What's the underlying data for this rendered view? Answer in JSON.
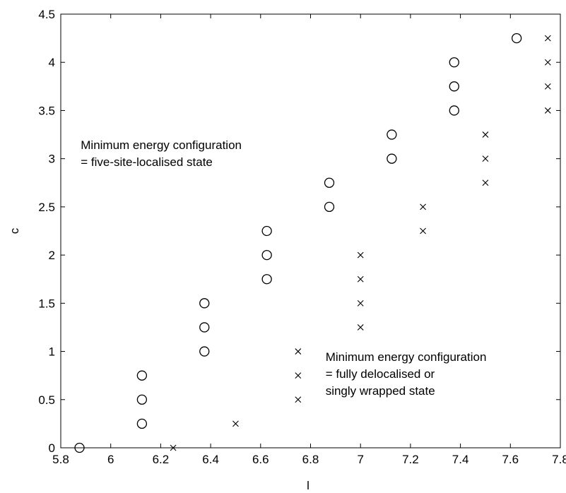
{
  "chart_data": {
    "type": "scatter",
    "title": "",
    "xlabel": "l",
    "ylabel": "c",
    "xlim": [
      5.8,
      7.8
    ],
    "ylim": [
      0,
      4.5
    ],
    "xticks": [
      "5.8",
      "6",
      "6.2",
      "6.4",
      "6.6",
      "6.8",
      "7",
      "7.2",
      "7.4",
      "7.6",
      "7.8"
    ],
    "yticks": [
      "0",
      "0.5",
      "1",
      "1.5",
      "2",
      "2.5",
      "3",
      "3.5",
      "4",
      "4.5"
    ],
    "grid": false,
    "series": [
      {
        "marker": "circle",
        "points": [
          [
            5.875,
            0
          ],
          [
            6.125,
            0.25
          ],
          [
            6.125,
            0.5
          ],
          [
            6.125,
            0.75
          ],
          [
            6.375,
            1.0
          ],
          [
            6.375,
            1.25
          ],
          [
            6.375,
            1.5
          ],
          [
            6.625,
            1.75
          ],
          [
            6.625,
            2.0
          ],
          [
            6.625,
            2.25
          ],
          [
            6.875,
            2.5
          ],
          [
            6.875,
            2.75
          ],
          [
            7.125,
            3.0
          ],
          [
            7.125,
            3.25
          ],
          [
            7.375,
            3.5
          ],
          [
            7.375,
            3.75
          ],
          [
            7.375,
            4.0
          ],
          [
            7.625,
            4.25
          ]
        ]
      },
      {
        "marker": "x",
        "points": [
          [
            6.25,
            0
          ],
          [
            6.5,
            0.25
          ],
          [
            6.75,
            0.5
          ],
          [
            6.75,
            0.75
          ],
          [
            6.75,
            1.0
          ],
          [
            7.0,
            1.25
          ],
          [
            7.0,
            1.5
          ],
          [
            7.0,
            1.75
          ],
          [
            7.0,
            2.0
          ],
          [
            7.25,
            2.25
          ],
          [
            7.25,
            2.5
          ],
          [
            7.5,
            2.75
          ],
          [
            7.5,
            3.0
          ],
          [
            7.5,
            3.25
          ],
          [
            7.75,
            3.5
          ],
          [
            7.75,
            3.75
          ],
          [
            7.75,
            4.0
          ],
          [
            7.75,
            4.25
          ]
        ]
      }
    ],
    "annotations": [
      {
        "x": 5.88,
        "y": 3.1,
        "lines": [
          "Minimum energy configuration",
          "= five-site-localised state"
        ]
      },
      {
        "x": 6.86,
        "y": 0.9,
        "lines": [
          "Minimum energy configuration",
          "= fully delocalised or",
          "singly wrapped state"
        ]
      }
    ]
  }
}
